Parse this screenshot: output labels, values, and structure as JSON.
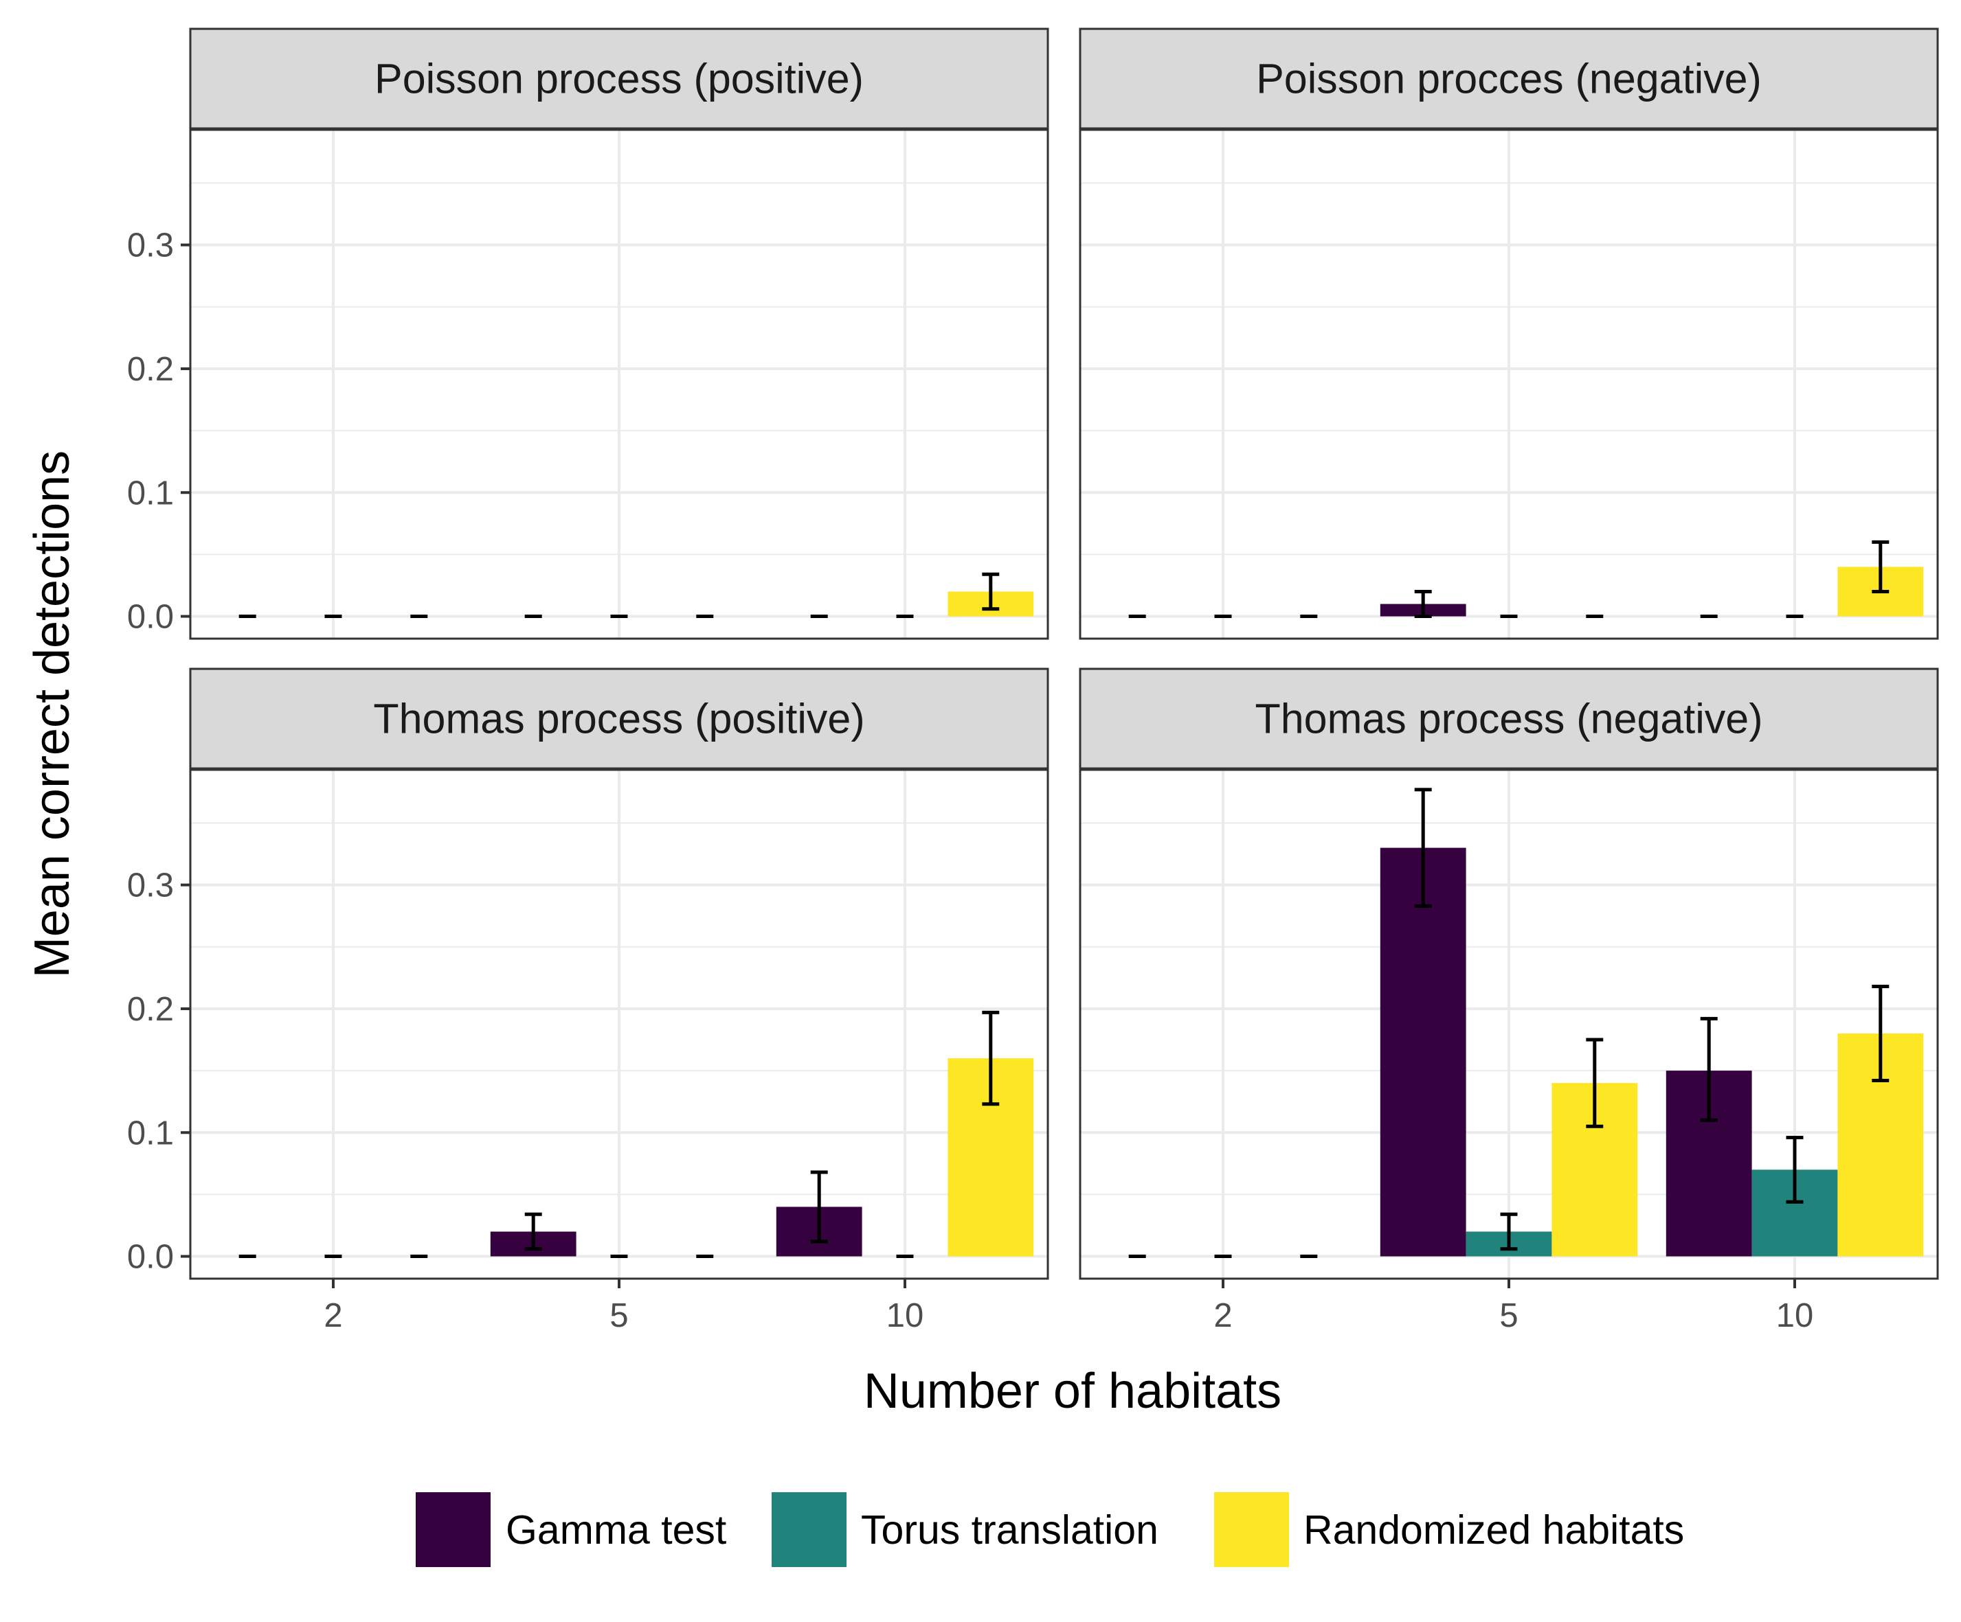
{
  "colors": {
    "gamma": "#35013f",
    "torus": "#20847c",
    "randomized": "#fde725",
    "strip_fill": "#d9d9d9",
    "grid": "#ebebeb",
    "panel_border": "#333333",
    "errorbar": "#000000"
  },
  "chart_data": {
    "type": "bar",
    "xlabel": "Number of habitats",
    "ylabel": "Mean correct detections",
    "categories": [
      "2",
      "5",
      "10"
    ],
    "ylim": [
      -0.018,
      0.393
    ],
    "yticks": [
      0.0,
      0.1,
      0.2,
      0.3
    ],
    "ytick_labels": [
      "0.0",
      "0.1",
      "0.2",
      "0.3"
    ],
    "grid": true,
    "legend_position": "bottom",
    "legend": [
      "Gamma test",
      "Torus translation",
      "Randomized habitats"
    ],
    "panels": [
      {
        "title": "Poisson process (positive)",
        "series": [
          {
            "name": "Gamma test",
            "values": [
              0,
              0,
              0
            ],
            "lower": [
              0,
              0,
              0
            ],
            "upper": [
              0,
              0,
              0
            ]
          },
          {
            "name": "Torus translation",
            "values": [
              0,
              0,
              0
            ],
            "lower": [
              0,
              0,
              0
            ],
            "upper": [
              0,
              0,
              0
            ]
          },
          {
            "name": "Randomized habitats",
            "values": [
              0,
              0,
              0.02
            ],
            "lower": [
              0,
              0,
              0.006
            ],
            "upper": [
              0,
              0,
              0.034
            ]
          }
        ]
      },
      {
        "title": "Poisson procces (negative)",
        "series": [
          {
            "name": "Gamma test",
            "values": [
              0,
              0.01,
              0
            ],
            "lower": [
              0,
              0,
              0
            ],
            "upper": [
              0,
              0.02,
              0
            ]
          },
          {
            "name": "Torus translation",
            "values": [
              0,
              0,
              0
            ],
            "lower": [
              0,
              0,
              0
            ],
            "upper": [
              0,
              0,
              0
            ]
          },
          {
            "name": "Randomized habitats",
            "values": [
              0,
              0,
              0.04
            ],
            "lower": [
              0,
              0,
              0.02
            ],
            "upper": [
              0,
              0,
              0.06
            ]
          }
        ]
      },
      {
        "title": "Thomas process (positive)",
        "series": [
          {
            "name": "Gamma test",
            "values": [
              0,
              0.02,
              0.04
            ],
            "lower": [
              0,
              0.006,
              0.012
            ],
            "upper": [
              0,
              0.034,
              0.068
            ]
          },
          {
            "name": "Torus translation",
            "values": [
              0,
              0,
              0
            ],
            "lower": [
              0,
              0,
              0
            ],
            "upper": [
              0,
              0,
              0
            ]
          },
          {
            "name": "Randomized habitats",
            "values": [
              0,
              0,
              0.16
            ],
            "lower": [
              0,
              0,
              0.123
            ],
            "upper": [
              0,
              0,
              0.197
            ]
          }
        ]
      },
      {
        "title": "Thomas process (negative)",
        "series": [
          {
            "name": "Gamma test",
            "values": [
              0,
              0.33,
              0.15
            ],
            "lower": [
              0,
              0.283,
              0.11
            ],
            "upper": [
              0,
              0.377,
              0.192
            ]
          },
          {
            "name": "Torus translation",
            "values": [
              0,
              0.02,
              0.07
            ],
            "lower": [
              0,
              0.006,
              0.044
            ],
            "upper": [
              0,
              0.034,
              0.096
            ]
          },
          {
            "name": "Randomized habitats",
            "values": [
              0,
              0.14,
              0.18
            ],
            "lower": [
              0,
              0.105,
              0.142
            ],
            "upper": [
              0,
              0.175,
              0.218
            ]
          }
        ]
      }
    ]
  }
}
